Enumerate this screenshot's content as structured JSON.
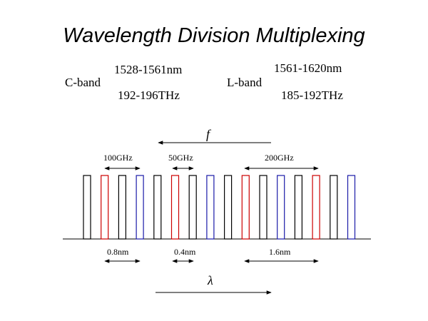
{
  "title": "Wavelength Division Multiplexing",
  "bands": {
    "c_band": {
      "label": "C-band",
      "wavelength": "1528-1561nm",
      "frequency": "192-196THz"
    },
    "l_band": {
      "label": "L-band",
      "wavelength": "1561-1620nm",
      "frequency": "185-192THz"
    }
  },
  "axis_labels": {
    "frequency": "f",
    "wavelength": "λ"
  },
  "spacing_labels": {
    "f_100": "100GHz",
    "f_50": "50GHz",
    "f_200": "200GHz",
    "w_08": "0.8nm",
    "w_04": "0.4nm",
    "w_16": "1.6nm"
  },
  "colors": {
    "black": "#000000",
    "red": "#cc0000",
    "blue": "#1a1aa8"
  },
  "channels": [
    "black",
    "red",
    "black",
    "blue",
    "black",
    "red",
    "black",
    "blue",
    "black",
    "red",
    "black",
    "blue",
    "black",
    "red",
    "black",
    "blue"
  ]
}
